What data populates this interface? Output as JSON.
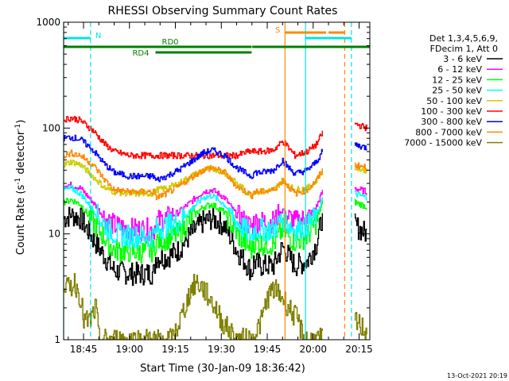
{
  "chart_data": {
    "type": "line",
    "title": "RHESSI Observing Summary Count Rates",
    "xlabel": "Start Time (30-Jan-09 18:36:42)",
    "ylabel_main": "Count Rate (s",
    "ylabel_sup1": "-1",
    "ylabel_mid": " detector",
    "ylabel_sup2": "-1",
    "ylabel_end": ")",
    "y_scale": "log",
    "ylim": [
      1,
      1000
    ],
    "xlim_minutes": [
      38.5,
      138.5
    ],
    "x_tick_values": [
      45,
      60,
      75,
      90,
      105,
      120,
      135
    ],
    "x_tick_labels": [
      "18:45",
      "19:00",
      "19:15",
      "19:30",
      "19:45",
      "20:00",
      "20:15"
    ],
    "y_tick_values": [
      1,
      10,
      100,
      1000
    ],
    "y_tick_labels": [
      "1",
      "10",
      "100",
      "1000"
    ],
    "timestamp": "13-Oct-2021 20:19",
    "legend_header": [
      "Det 1,3,4,5,6,9,",
      "FDecim 1, Att 0"
    ],
    "series": [
      {
        "name": "3 - 6 keV",
        "color": "#000000",
        "points": [
          [
            38.5,
            14
          ],
          [
            41,
            15
          ],
          [
            44,
            14
          ],
          [
            48,
            9
          ],
          [
            52,
            6
          ],
          [
            55,
            4.5
          ],
          [
            60,
            4.2
          ],
          [
            65,
            4.2
          ],
          [
            68,
            4.3
          ],
          [
            68.5,
            6
          ],
          [
            72,
            6
          ],
          [
            76,
            7
          ],
          [
            80,
            10
          ],
          [
            84,
            13
          ],
          [
            87,
            14
          ],
          [
            91,
            12
          ],
          [
            95,
            7
          ],
          [
            99,
            4.8
          ],
          [
            100,
            4.3
          ],
          [
            100.5,
            5.5
          ],
          [
            103,
            5
          ],
          [
            107,
            5
          ],
          [
            110,
            7.5
          ],
          [
            111,
            6.8
          ],
          [
            114,
            5
          ],
          [
            118,
            5.5
          ],
          [
            121,
            8
          ],
          [
            123,
            15
          ]
        ],
        "tail": [
          [
            133.5,
            12
          ],
          [
            137.5,
            10
          ]
        ]
      },
      {
        "name": "6 - 12 keV",
        "color": "#ff00ff",
        "points": [
          [
            38.5,
            29
          ],
          [
            41,
            29
          ],
          [
            44,
            27
          ],
          [
            48,
            20
          ],
          [
            52,
            14
          ],
          [
            55,
            12
          ],
          [
            60,
            11
          ],
          [
            65,
            11
          ],
          [
            68,
            11
          ],
          [
            68.5,
            13
          ],
          [
            72,
            14
          ],
          [
            76,
            16
          ],
          [
            80,
            20
          ],
          [
            84,
            25
          ],
          [
            87,
            26
          ],
          [
            91,
            22
          ],
          [
            95,
            15
          ],
          [
            99,
            12
          ],
          [
            100,
            11.5
          ],
          [
            100.5,
            13
          ],
          [
            103,
            13
          ],
          [
            107,
            13
          ],
          [
            110,
            17
          ],
          [
            111,
            15
          ],
          [
            114,
            13
          ],
          [
            118,
            14
          ],
          [
            121,
            18
          ],
          [
            123,
            25
          ]
        ],
        "tail": [
          [
            133.5,
            27
          ],
          [
            137.5,
            25
          ]
        ]
      },
      {
        "name": "12 - 25 keV",
        "color": "#00ff00",
        "points": [
          [
            38.5,
            20
          ],
          [
            41,
            21
          ],
          [
            44,
            19
          ],
          [
            48,
            13
          ],
          [
            52,
            9
          ],
          [
            55,
            7
          ],
          [
            60,
            6.8
          ],
          [
            65,
            6.8
          ],
          [
            68,
            7
          ],
          [
            68.5,
            8.5
          ],
          [
            72,
            9
          ],
          [
            76,
            10
          ],
          [
            80,
            14
          ],
          [
            84,
            18
          ],
          [
            87,
            19
          ],
          [
            91,
            16
          ],
          [
            95,
            10
          ],
          [
            99,
            7.5
          ],
          [
            100,
            7
          ],
          [
            100.5,
            8.5
          ],
          [
            103,
            8
          ],
          [
            107,
            8
          ],
          [
            110,
            11
          ],
          [
            111,
            10
          ],
          [
            114,
            8.5
          ],
          [
            118,
            9.5
          ],
          [
            121,
            13
          ],
          [
            123,
            20
          ]
        ],
        "tail": [
          [
            133.5,
            20
          ],
          [
            137.5,
            18
          ]
        ]
      },
      {
        "name": "25 - 50 keV",
        "color": "#00ffff",
        "points": [
          [
            38.5,
            26
          ],
          [
            41,
            27
          ],
          [
            44,
            24
          ],
          [
            48,
            17
          ],
          [
            52,
            12
          ],
          [
            55,
            10
          ],
          [
            60,
            9.5
          ],
          [
            65,
            9.5
          ],
          [
            68,
            9.5
          ],
          [
            68.5,
            11
          ],
          [
            72,
            12
          ],
          [
            76,
            13
          ],
          [
            80,
            17
          ],
          [
            84,
            22
          ],
          [
            87,
            23
          ],
          [
            91,
            19
          ],
          [
            95,
            13
          ],
          [
            99,
            10
          ],
          [
            100,
            9.5
          ],
          [
            100.5,
            11
          ],
          [
            103,
            11
          ],
          [
            107,
            11
          ],
          [
            110,
            14
          ],
          [
            111,
            13
          ],
          [
            114,
            11
          ],
          [
            118,
            12
          ],
          [
            121,
            15
          ],
          [
            123,
            22
          ]
        ],
        "tail": [
          [
            133.5,
            24
          ],
          [
            137.5,
            22
          ]
        ]
      },
      {
        "name": "50 - 100 keV",
        "color": "#cccc00",
        "points": [
          [
            38.5,
            45
          ],
          [
            41,
            48
          ],
          [
            44,
            45
          ],
          [
            48,
            35
          ],
          [
            52,
            27
          ],
          [
            55,
            25
          ],
          [
            60,
            24
          ],
          [
            65,
            24
          ],
          [
            68,
            24
          ],
          [
            68.5,
            26
          ],
          [
            72,
            27
          ],
          [
            76,
            30
          ],
          [
            80,
            35
          ],
          [
            84,
            40
          ],
          [
            87,
            42
          ],
          [
            91,
            38
          ],
          [
            95,
            30
          ],
          [
            99,
            24
          ],
          [
            100,
            23
          ],
          [
            100.5,
            25
          ],
          [
            103,
            25
          ],
          [
            107,
            26
          ],
          [
            110,
            32
          ],
          [
            111,
            30
          ],
          [
            114,
            26
          ],
          [
            118,
            27
          ],
          [
            121,
            32
          ],
          [
            123,
            40
          ]
        ],
        "tail": [
          [
            133.5,
            42
          ],
          [
            137.5,
            40
          ]
        ]
      },
      {
        "name": "100 - 300 keV",
        "color": "#ff0000",
        "points": [
          [
            38.5,
            120
          ],
          [
            41,
            125
          ],
          [
            44,
            118
          ],
          [
            48,
            95
          ],
          [
            52,
            70
          ],
          [
            55,
            60
          ],
          [
            60,
            55
          ],
          [
            65,
            55
          ],
          [
            68,
            55
          ],
          [
            68.5,
            55
          ],
          [
            72,
            55
          ],
          [
            76,
            55
          ],
          [
            80,
            55
          ],
          [
            84,
            55
          ],
          [
            87,
            55
          ],
          [
            91,
            55
          ],
          [
            95,
            55
          ],
          [
            99,
            60
          ],
          [
            100,
            60
          ],
          [
            100.5,
            60
          ],
          [
            103,
            60
          ],
          [
            107,
            62
          ],
          [
            110,
            75
          ],
          [
            111,
            70
          ],
          [
            114,
            55
          ],
          [
            118,
            60
          ],
          [
            121,
            70
          ],
          [
            123,
            90
          ]
        ],
        "tail": [
          [
            133.5,
            110
          ],
          [
            137.5,
            100
          ]
        ]
      },
      {
        "name": "300 - 800 keV",
        "color": "#0000ff",
        "points": [
          [
            38.5,
            80
          ],
          [
            41,
            82
          ],
          [
            44,
            78
          ],
          [
            48,
            62
          ],
          [
            52,
            45
          ],
          [
            55,
            38
          ],
          [
            60,
            35
          ],
          [
            65,
            35
          ],
          [
            68,
            35
          ],
          [
            68.5,
            32
          ],
          [
            72,
            35
          ],
          [
            76,
            40
          ],
          [
            80,
            48
          ],
          [
            84,
            58
          ],
          [
            87,
            62
          ],
          [
            91,
            55
          ],
          [
            95,
            42
          ],
          [
            99,
            36
          ],
          [
            100,
            35
          ],
          [
            100.5,
            38
          ],
          [
            103,
            38
          ],
          [
            107,
            40
          ],
          [
            110,
            50
          ],
          [
            111,
            45
          ],
          [
            114,
            37
          ],
          [
            118,
            40
          ],
          [
            121,
            48
          ],
          [
            123,
            60
          ]
        ],
        "tail": [
          [
            133.5,
            70
          ],
          [
            137.5,
            65
          ]
        ]
      },
      {
        "name": "800 - 7000 keV",
        "color": "#ff8800",
        "points": [
          [
            38.5,
            55
          ],
          [
            41,
            58
          ],
          [
            44,
            55
          ],
          [
            48,
            45
          ],
          [
            52,
            32
          ],
          [
            55,
            26
          ],
          [
            60,
            25
          ],
          [
            65,
            25
          ],
          [
            68,
            25
          ],
          [
            68.5,
            22
          ],
          [
            72,
            24
          ],
          [
            76,
            28
          ],
          [
            80,
            34
          ],
          [
            84,
            40
          ],
          [
            87,
            42
          ],
          [
            91,
            38
          ],
          [
            95,
            28
          ],
          [
            99,
            24
          ],
          [
            100,
            23
          ],
          [
            100.5,
            25
          ],
          [
            103,
            25
          ],
          [
            107,
            26
          ],
          [
            110,
            32
          ],
          [
            111,
            30
          ],
          [
            114,
            24
          ],
          [
            118,
            26
          ],
          [
            121,
            32
          ],
          [
            123,
            40
          ]
        ],
        "tail": [
          [
            133.5,
            45
          ],
          [
            137.5,
            42
          ]
        ]
      },
      {
        "name": "7000 - 15000 keV",
        "color": "#808000",
        "points": [
          [
            38.5,
            3.5
          ],
          [
            40,
            3
          ],
          [
            42,
            3.5
          ],
          [
            44,
            2.5
          ],
          [
            45,
            1.5
          ],
          [
            47,
            1.5
          ],
          [
            49,
            2
          ],
          [
            50,
            1
          ],
          [
            58,
            1
          ],
          [
            62,
            1
          ],
          [
            66,
            1
          ],
          [
            70,
            1
          ],
          [
            74,
            1
          ],
          [
            78,
            2
          ],
          [
            80,
            3
          ],
          [
            82,
            3.5
          ],
          [
            84,
            3
          ],
          [
            86,
            2.5
          ],
          [
            88,
            2
          ],
          [
            90,
            1.5
          ],
          [
            95,
            1
          ],
          [
            100,
            1
          ],
          [
            103,
            1.5
          ],
          [
            105,
            2.5
          ],
          [
            107,
            3
          ],
          [
            110,
            2.5
          ],
          [
            112,
            2
          ],
          [
            115,
            1.5
          ],
          [
            117,
            1
          ],
          [
            123,
            1
          ]
        ],
        "tail": [
          [
            133.5,
            1.5
          ],
          [
            137.5,
            1.2
          ]
        ]
      }
    ],
    "attenuator_labels": {
      "rd0": "RD0",
      "rd4": "RD4",
      "n": "N",
      "s": "S"
    },
    "vertical_markers": [
      {
        "minute": 38.5,
        "color": "#00e5e5",
        "dash": false
      },
      {
        "minute": 47.3,
        "color": "#00e5e5",
        "dash": true
      },
      {
        "minute": 110.8,
        "color": "#ff8800",
        "dash": false
      },
      {
        "minute": 117.5,
        "color": "#00e5e5",
        "dash": false
      },
      {
        "minute": 130.3,
        "color": "#ff8800",
        "dash": true
      },
      {
        "minute": 132.5,
        "color": "#00e5e5",
        "dash": true
      }
    ],
    "bands": [
      {
        "key": "n",
        "color": "#00e5e5",
        "segments": [
          [
            38.5,
            47.3
          ],
          [
            117.5,
            130.3
          ],
          [
            130.3,
            132.5
          ]
        ]
      },
      {
        "key": "s",
        "color": "#ff8800",
        "segments": [
          [
            110.8,
            124.2
          ],
          [
            125.0,
            130.3
          ]
        ]
      },
      {
        "key": "rd0",
        "color": "#008000",
        "segments": [
          [
            38.5,
            68.5
          ],
          [
            68.5,
            99.9
          ],
          [
            100.1,
            138.5
          ]
        ]
      },
      {
        "key": "rd4",
        "color": "#008000",
        "segments": [
          [
            68.5,
            99.9
          ]
        ]
      }
    ]
  }
}
